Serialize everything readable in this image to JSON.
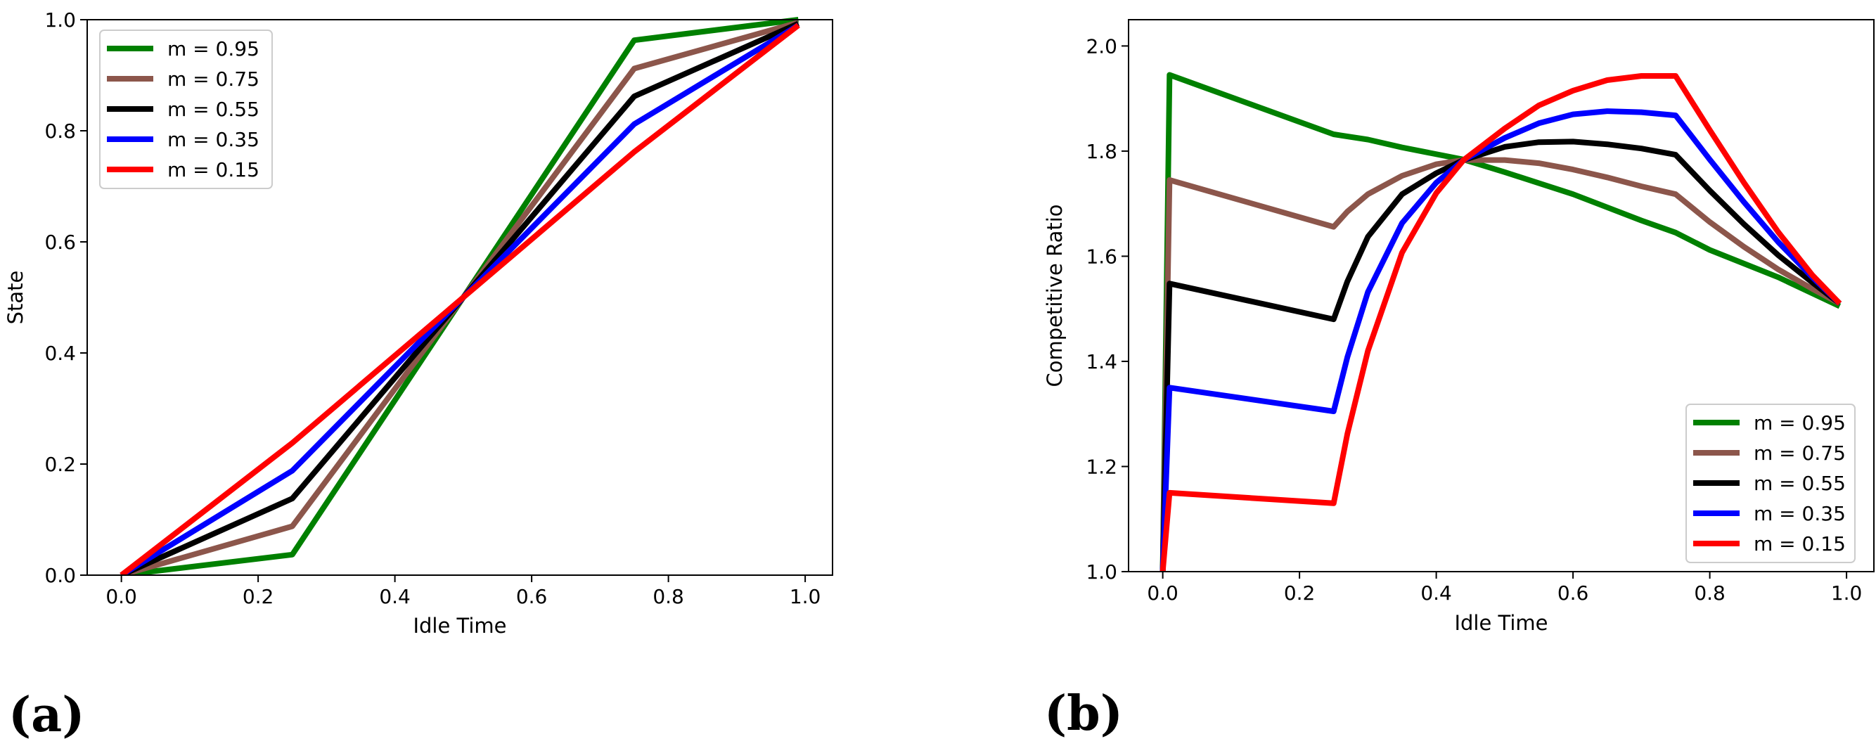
{
  "chart_data": [
    {
      "type": "line",
      "panel_label": "(a)",
      "xlabel": "Idle Time",
      "ylabel": "State",
      "xlim": [
        -0.05,
        1.04
      ],
      "ylim": [
        0.0,
        1.0
      ],
      "xticks": [
        "0.0",
        "0.2",
        "0.4",
        "0.6",
        "0.8",
        "1.0"
      ],
      "yticks": [
        "0.0",
        "0.2",
        "0.4",
        "0.6",
        "0.8",
        "1.0"
      ],
      "legend_position": "upper-left",
      "grid": false,
      "series": [
        {
          "name": "m = 0.95",
          "color": "#008000",
          "x": [
            0,
            0.25,
            0.75,
            0.99
          ],
          "y": [
            0,
            0.037,
            0.963,
            1.0
          ]
        },
        {
          "name": "m = 0.75",
          "color": "#8c564b",
          "x": [
            0,
            0.25,
            0.75,
            0.99
          ],
          "y": [
            0,
            0.088,
            0.912,
            0.995
          ]
        },
        {
          "name": "m = 0.55",
          "color": "#000000",
          "x": [
            0,
            0.25,
            0.75,
            0.99
          ],
          "y": [
            0,
            0.138,
            0.862,
            0.993
          ]
        },
        {
          "name": "m = 0.35",
          "color": "#0000ff",
          "x": [
            0,
            0.25,
            0.75,
            0.99
          ],
          "y": [
            0,
            0.188,
            0.812,
            0.99
          ]
        },
        {
          "name": "m = 0.15",
          "color": "#ff0000",
          "x": [
            0,
            0.25,
            0.75,
            0.99
          ],
          "y": [
            0,
            0.238,
            0.762,
            0.99
          ]
        }
      ]
    },
    {
      "type": "line",
      "panel_label": "(b)",
      "xlabel": "Idle Time",
      "ylabel": "Competitive Ratio",
      "xlim": [
        -0.05,
        1.04
      ],
      "ylim": [
        1.0,
        2.05
      ],
      "xticks": [
        "0.0",
        "0.2",
        "0.4",
        "0.6",
        "0.8",
        "1.0"
      ],
      "yticks": [
        "1.0",
        "1.2",
        "1.4",
        "1.6",
        "1.8",
        "2.0"
      ],
      "legend_position": "lower-right",
      "grid": false,
      "series": [
        {
          "name": "m = 0.95",
          "color": "#008000",
          "x": [
            0,
            0.01,
            0.25,
            0.3,
            0.35,
            0.44,
            0.5,
            0.6,
            0.7,
            0.75,
            0.8,
            0.9,
            0.99
          ],
          "y": [
            1.0,
            1.945,
            1.832,
            1.822,
            1.807,
            1.784,
            1.76,
            1.718,
            1.668,
            1.645,
            1.612,
            1.56,
            1.505
          ]
        },
        {
          "name": "m = 0.75",
          "color": "#8c564b",
          "x": [
            0,
            0.01,
            0.25,
            0.27,
            0.3,
            0.35,
            0.4,
            0.44,
            0.5,
            0.55,
            0.6,
            0.65,
            0.7,
            0.75,
            0.8,
            0.85,
            0.9,
            0.95,
            0.99
          ],
          "y": [
            1.0,
            1.745,
            1.656,
            1.685,
            1.718,
            1.753,
            1.775,
            1.783,
            1.783,
            1.777,
            1.765,
            1.75,
            1.733,
            1.718,
            1.665,
            1.618,
            1.575,
            1.538,
            1.51
          ]
        },
        {
          "name": "m = 0.55",
          "color": "#000000",
          "x": [
            0,
            0.01,
            0.25,
            0.27,
            0.3,
            0.35,
            0.4,
            0.44,
            0.5,
            0.55,
            0.6,
            0.65,
            0.7,
            0.75,
            0.8,
            0.85,
            0.9,
            0.95,
            0.99
          ],
          "y": [
            1.0,
            1.548,
            1.48,
            1.552,
            1.637,
            1.718,
            1.758,
            1.783,
            1.808,
            1.817,
            1.818,
            1.813,
            1.805,
            1.793,
            1.725,
            1.661,
            1.602,
            1.55,
            1.51
          ]
        },
        {
          "name": "m = 0.35",
          "color": "#0000ff",
          "x": [
            0,
            0.01,
            0.25,
            0.27,
            0.3,
            0.35,
            0.4,
            0.44,
            0.5,
            0.55,
            0.6,
            0.65,
            0.7,
            0.75,
            0.8,
            0.85,
            0.9,
            0.95,
            0.99
          ],
          "y": [
            1.0,
            1.35,
            1.305,
            1.408,
            1.532,
            1.663,
            1.74,
            1.783,
            1.825,
            1.853,
            1.87,
            1.876,
            1.874,
            1.868,
            1.784,
            1.703,
            1.627,
            1.56,
            1.51
          ]
        },
        {
          "name": "m = 0.15",
          "color": "#ff0000",
          "x": [
            0,
            0.01,
            0.25,
            0.27,
            0.3,
            0.35,
            0.4,
            0.44,
            0.5,
            0.55,
            0.6,
            0.65,
            0.7,
            0.75,
            0.8,
            0.85,
            0.9,
            0.95,
            0.99
          ],
          "y": [
            1.0,
            1.15,
            1.13,
            1.262,
            1.42,
            1.607,
            1.72,
            1.783,
            1.843,
            1.887,
            1.915,
            1.935,
            1.943,
            1.943,
            1.84,
            1.74,
            1.646,
            1.564,
            1.51
          ]
        }
      ]
    }
  ]
}
